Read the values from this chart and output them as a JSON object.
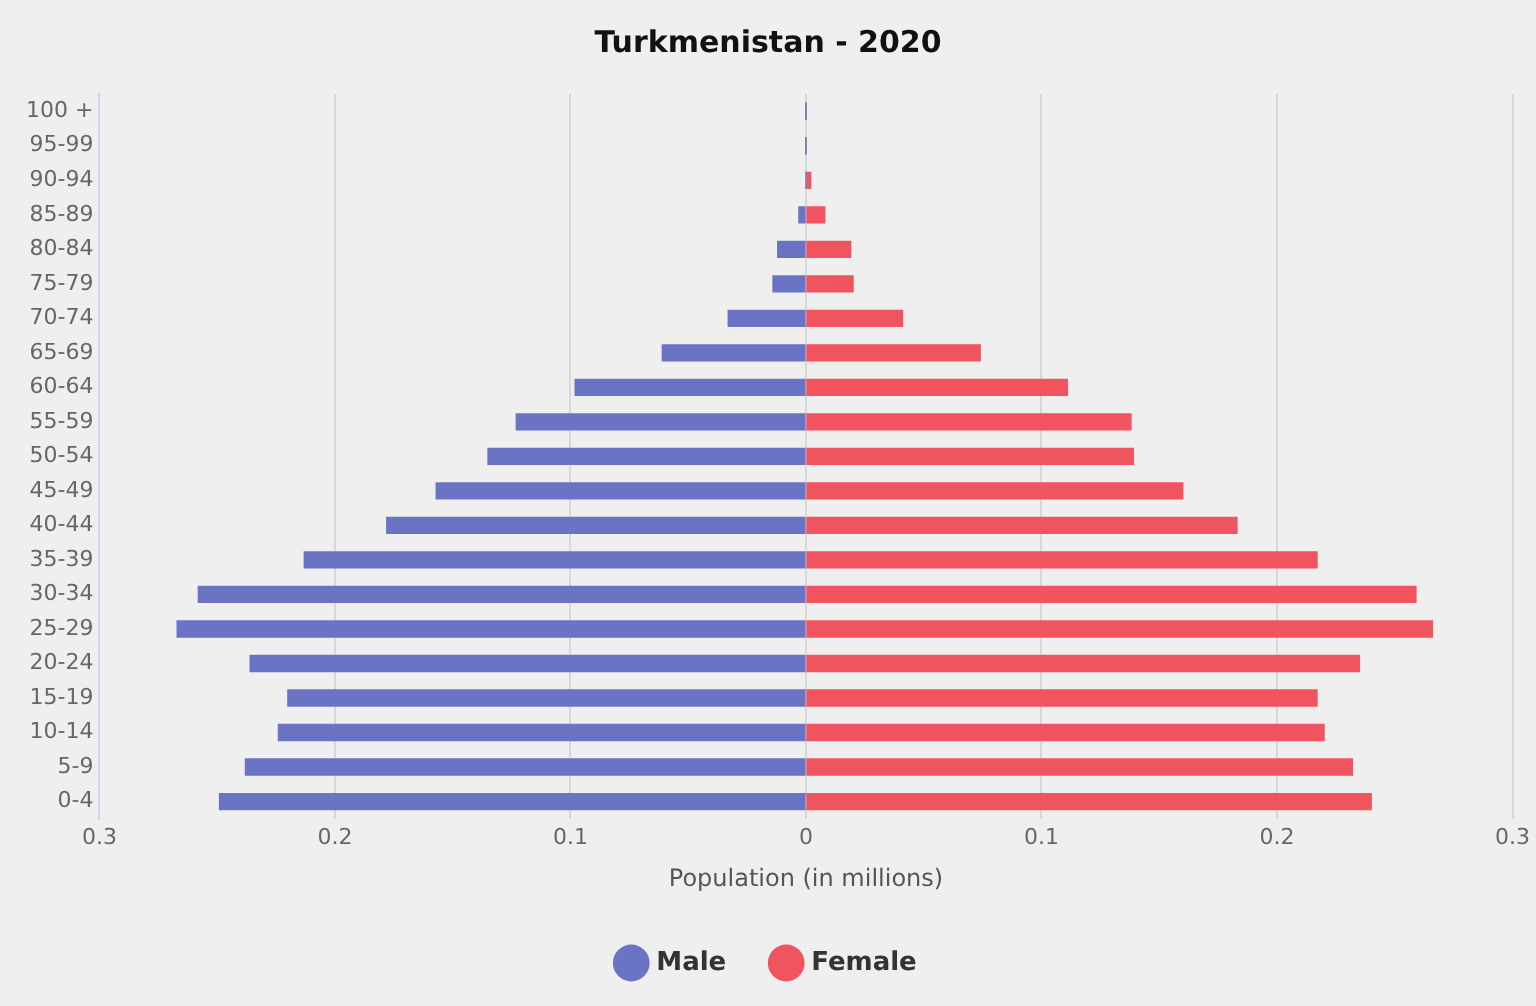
{
  "chart_data": {
    "type": "bar",
    "title": "Turkmenistan - 2020",
    "xlabel": "Population (in millions)",
    "orientation": "horizontal",
    "stacked": true,
    "categories": [
      "100 +",
      "95-99",
      "90-94",
      "85-89",
      "80-84",
      "75-79",
      "70-74",
      "65-69",
      "60-64",
      "55-59",
      "50-54",
      "45-49",
      "40-44",
      "35-39",
      "30-34",
      "25-29",
      "20-24",
      "15-19",
      "10-14",
      "5-9",
      "0-4"
    ],
    "series": [
      {
        "name": "Male",
        "color": "#6b74c4",
        "values": [
          0,
          0,
          0,
          -0.003,
          -0.012,
          -0.014,
          -0.033,
          -0.061,
          -0.098,
          -0.123,
          -0.135,
          -0.157,
          -0.178,
          -0.213,
          -0.258,
          -0.267,
          -0.236,
          -0.22,
          -0.224,
          -0.238,
          -0.249
        ]
      },
      {
        "name": "Female",
        "color": "#f0545e",
        "values": [
          0,
          0,
          0.002,
          0.008,
          0.019,
          0.02,
          0.041,
          0.074,
          0.111,
          0.138,
          0.139,
          0.16,
          0.183,
          0.217,
          0.259,
          0.266,
          0.235,
          0.217,
          0.22,
          0.232,
          0.24
        ]
      }
    ],
    "xlim": [
      -0.3,
      0.3
    ],
    "xticks": [
      {
        "value": -0.3,
        "label": "0.3"
      },
      {
        "value": -0.2,
        "label": "0.2"
      },
      {
        "value": -0.1,
        "label": "0.1"
      },
      0,
      0.1,
      0.2,
      0.3
    ],
    "grid": "x",
    "legend": "bottom"
  }
}
